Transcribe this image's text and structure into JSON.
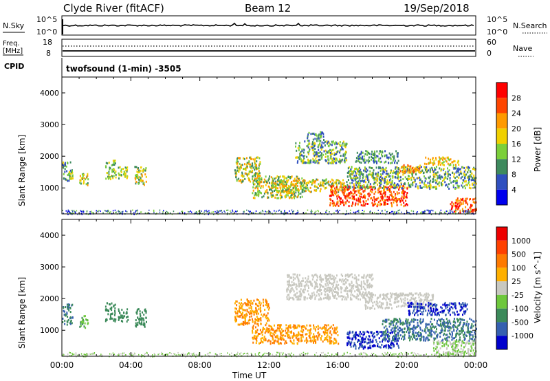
{
  "header": {
    "station": "Clyde River (fitACF)",
    "beam": "Beam 12",
    "date": "19/Sep/2018"
  },
  "strip1": {
    "left_label": "N.Sky",
    "left_ticks": [
      "10^5",
      "10^0"
    ],
    "right_ticks": [
      "10^5",
      "10^0"
    ],
    "right_label": "N.Search"
  },
  "strip2": {
    "left_label_1": "Freq.",
    "left_label_2": "[MHz]",
    "left_ticks": [
      "18",
      "8"
    ],
    "right_ticks": [
      "60",
      "0"
    ],
    "right_label": "Nave"
  },
  "cpid": {
    "label": "CPID",
    "value": "twofsound (1-min) -3505"
  },
  "chart_data": [
    {
      "type": "heatmap",
      "title": "Power",
      "ylabel": "Slant Range [km]",
      "xlabel": "Time UT",
      "colorbar_label": "Power [dB]",
      "colorbar_ticks": [
        "28",
        "24",
        "20",
        "16",
        "12",
        "8",
        "4"
      ],
      "ylim": [
        180,
        4500
      ],
      "y_ticks": [
        "4000",
        "3000",
        "2000",
        "1000"
      ],
      "x_ticks": [
        "00:00",
        "04:00",
        "08:00",
        "12:00",
        "16:00",
        "20:00",
        "00:00"
      ],
      "colors": [
        "#0000ee",
        "#2f4fbf",
        "#3e8a5e",
        "#7bcf3a",
        "#f0d000",
        "#ff9a00",
        "#ff4500",
        "#ff0000"
      ],
      "blobs": [
        {
          "t": [
            0.0,
            0.6
          ],
          "r": [
            1200,
            1850
          ],
          "c": [
            1,
            4
          ]
        },
        {
          "t": [
            1.0,
            1.5
          ],
          "r": [
            1100,
            1500
          ],
          "c": [
            2,
            5
          ]
        },
        {
          "t": [
            2.5,
            3.1
          ],
          "r": [
            1300,
            1900
          ],
          "c": [
            2,
            4
          ]
        },
        {
          "t": [
            3.2,
            3.8
          ],
          "r": [
            1300,
            1700
          ],
          "c": [
            2,
            4
          ]
        },
        {
          "t": [
            4.2,
            4.9
          ],
          "r": [
            1100,
            1700
          ],
          "c": [
            2,
            5
          ]
        },
        {
          "t": [
            10.0,
            11.5
          ],
          "r": [
            1200,
            2000
          ],
          "c": [
            2,
            5
          ]
        },
        {
          "t": [
            11.0,
            14.0
          ],
          "r": [
            700,
            1400
          ],
          "c": [
            2,
            5
          ]
        },
        {
          "t": [
            13.5,
            16.5
          ],
          "r": [
            1800,
            2500
          ],
          "c": [
            1,
            4
          ]
        },
        {
          "t": [
            14.2,
            15.2
          ],
          "r": [
            2500,
            2800
          ],
          "c": [
            1,
            3
          ]
        },
        {
          "t": [
            12.0,
            16.5
          ],
          "r": [
            900,
            1300
          ],
          "c": [
            2,
            5
          ]
        },
        {
          "t": [
            15.5,
            20.0
          ],
          "r": [
            450,
            1100
          ],
          "c": [
            5,
            7
          ]
        },
        {
          "t": [
            16.5,
            24.0
          ],
          "r": [
            1000,
            1700
          ],
          "c": [
            1,
            4
          ]
        },
        {
          "t": [
            17.0,
            19.5
          ],
          "r": [
            1800,
            2200
          ],
          "c": [
            1,
            3
          ]
        },
        {
          "t": [
            19.5,
            21.0
          ],
          "r": [
            1500,
            1750
          ],
          "c": [
            4,
            6
          ]
        },
        {
          "t": [
            21.0,
            23.0
          ],
          "r": [
            1750,
            2000
          ],
          "c": [
            3,
            5
          ]
        },
        {
          "t": [
            22.5,
            24.0
          ],
          "r": [
            250,
            700
          ],
          "c": [
            5,
            7
          ]
        }
      ],
      "ground_scatter": {
        "t": [
          0.0,
          24.0
        ],
        "r": [
          180,
          320
        ],
        "c": [
          0,
          3
        ]
      }
    },
    {
      "type": "heatmap",
      "title": "Velocity",
      "ylabel": "Slant Range [km]",
      "xlabel": "Time UT",
      "colorbar_label": "Velocity [m s^-1]",
      "colorbar_ticks": [
        "1000",
        "500",
        "100",
        "25",
        "-25",
        "-100",
        "-500",
        "-1000"
      ],
      "ylim": [
        180,
        4500
      ],
      "y_ticks": [
        "4000",
        "3000",
        "2000",
        "1000"
      ],
      "x_ticks": [
        "00:00",
        "04:00",
        "08:00",
        "12:00",
        "16:00",
        "20:00",
        "00:00"
      ],
      "colors": [
        "#0000cc",
        "#3560b0",
        "#3c8a5a",
        "#6ec83c",
        "#c8c8c0",
        "#ffb000",
        "#ff7a00",
        "#ff4000",
        "#ee0000"
      ],
      "blobs": [
        {
          "t": [
            0.0,
            0.6
          ],
          "r": [
            1200,
            1850
          ],
          "c": [
            1,
            2
          ]
        },
        {
          "t": [
            1.0,
            1.5
          ],
          "r": [
            1100,
            1500
          ],
          "c": [
            2,
            3
          ]
        },
        {
          "t": [
            2.5,
            3.1
          ],
          "r": [
            1300,
            1900
          ],
          "c": [
            2,
            2
          ]
        },
        {
          "t": [
            3.2,
            3.8
          ],
          "r": [
            1300,
            1700
          ],
          "c": [
            2,
            2
          ]
        },
        {
          "t": [
            4.2,
            4.9
          ],
          "r": [
            1100,
            1700
          ],
          "c": [
            2,
            2
          ]
        },
        {
          "t": [
            10.0,
            12.0
          ],
          "r": [
            1200,
            2000
          ],
          "c": [
            5,
            6
          ]
        },
        {
          "t": [
            11.0,
            16.0
          ],
          "r": [
            600,
            1200
          ],
          "c": [
            5,
            6
          ]
        },
        {
          "t": [
            13.0,
            18.0
          ],
          "r": [
            2000,
            2800
          ],
          "c": [
            4,
            4
          ]
        },
        {
          "t": [
            17.5,
            21.5
          ],
          "r": [
            1700,
            2200
          ],
          "c": [
            4,
            4
          ]
        },
        {
          "t": [
            16.5,
            19.5
          ],
          "r": [
            450,
            1000
          ],
          "c": [
            0,
            1
          ]
        },
        {
          "t": [
            18.5,
            24.0
          ],
          "r": [
            700,
            1400
          ],
          "c": [
            1,
            2
          ]
        },
        {
          "t": [
            20.0,
            23.5
          ],
          "r": [
            1500,
            1900
          ],
          "c": [
            0,
            1
          ]
        },
        {
          "t": [
            21.5,
            24.0
          ],
          "r": [
            250,
            700
          ],
          "c": [
            3,
            4
          ]
        }
      ],
      "ground_scatter": {
        "t": [
          0.0,
          24.0
        ],
        "r": [
          180,
          320
        ],
        "c": [
          3,
          4
        ]
      }
    }
  ]
}
